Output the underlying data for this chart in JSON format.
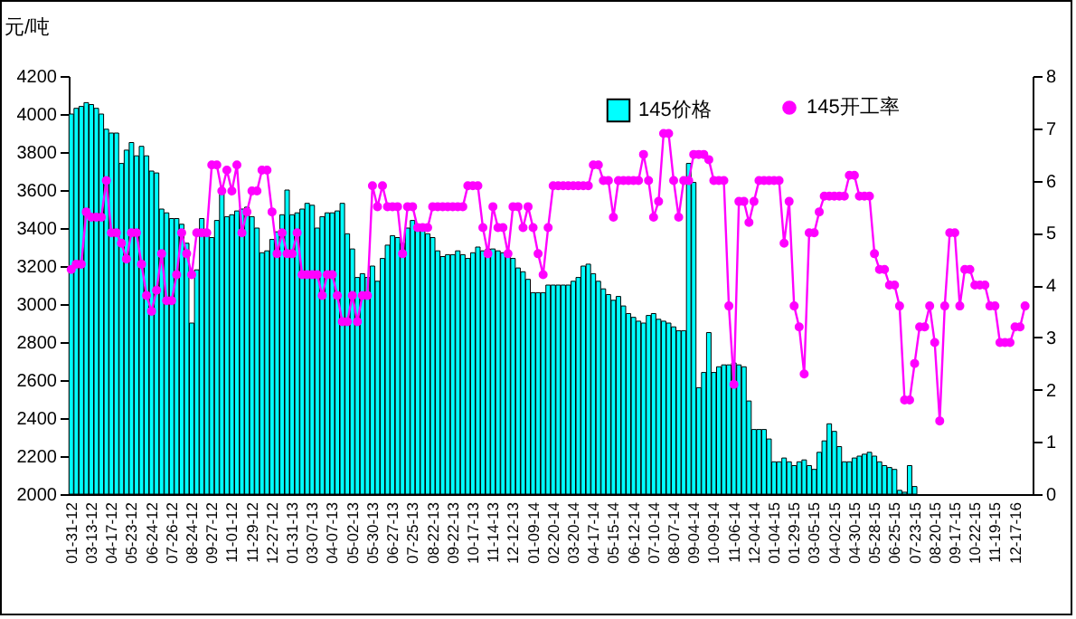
{
  "chart_data": {
    "type": "bar",
    "ylabel": "元/吨",
    "legend": "top right",
    "grid": false,
    "marker": "circle",
    "line_style": "solid",
    "categories": [
      "01-31-12",
      null,
      null,
      null,
      "03-13-12",
      null,
      null,
      null,
      "04-17-12",
      null,
      null,
      null,
      "05-23-12",
      null,
      null,
      null,
      "06-24-12",
      null,
      null,
      null,
      "07-26-12",
      null,
      null,
      null,
      "08-24-12",
      null,
      null,
      null,
      "09-27-12",
      null,
      null,
      null,
      "11-01-12",
      null,
      null,
      null,
      "11-29-12",
      null,
      null,
      null,
      "12-27-12",
      null,
      null,
      null,
      "01-31-13",
      null,
      null,
      null,
      "03-07-13",
      null,
      null,
      null,
      "04-07-13",
      null,
      null,
      null,
      "05-02-13",
      null,
      null,
      null,
      "05-30-13",
      null,
      null,
      null,
      "06-27-13",
      null,
      null,
      null,
      "07-25-13",
      null,
      null,
      null,
      "08-22-13",
      null,
      null,
      null,
      "09-22-13",
      null,
      null,
      null,
      "10-17-13",
      null,
      null,
      null,
      "11-14-13",
      null,
      null,
      null,
      "12-12-13",
      null,
      null,
      null,
      "01-09-14",
      null,
      null,
      null,
      "02-20-14",
      null,
      null,
      null,
      "03-20-14",
      null,
      null,
      null,
      "04-17-14",
      null,
      null,
      null,
      "05-15-14",
      null,
      null,
      null,
      "06-12-14",
      null,
      null,
      null,
      "07-10-14",
      null,
      null,
      null,
      "08-07-14",
      null,
      null,
      null,
      "09-04-14",
      null,
      null,
      null,
      "10-09-14",
      null,
      null,
      null,
      "11-06-14",
      null,
      null,
      null,
      "12-04-14",
      null,
      null,
      null,
      "01-04-15",
      null,
      null,
      null,
      "01-29-15",
      null,
      null,
      null,
      "03-05-15",
      null,
      null,
      null,
      "04-02-15",
      null,
      null,
      null,
      "04-30-15",
      null,
      null,
      null,
      "05-28-15",
      null,
      null,
      null,
      "06-25-15",
      null,
      null,
      null,
      "07-23-15",
      null,
      null,
      null,
      "08-20-15",
      null,
      null,
      null,
      "09-17-15",
      null,
      null,
      null,
      "10-22-15",
      null,
      null,
      null,
      "11-19-15",
      null,
      null,
      null,
      "12-17-16",
      null,
      null,
      null
    ],
    "series": [
      {
        "name": "145价格",
        "color": "#00ffff",
        "values": [
          4000,
          4030,
          4040,
          4060,
          4050,
          4030,
          4000,
          3920,
          3900,
          3900,
          3740,
          3810,
          3850,
          3780,
          3830,
          3780,
          3700,
          3690,
          3500,
          3480,
          3450,
          3450,
          3420,
          3320,
          2900,
          3180,
          3450,
          3380,
          3350,
          3440,
          3580,
          3460,
          3470,
          3490,
          3500,
          3510,
          3460,
          3400,
          3270,
          3280,
          3340,
          3380,
          3470,
          3600,
          3470,
          3480,
          3500,
          3530,
          3520,
          3400,
          3460,
          3480,
          3480,
          3490,
          3530,
          3370,
          3290,
          3140,
          3160,
          3140,
          3200,
          3120,
          3240,
          3310,
          3360,
          3350,
          3320,
          3400,
          3440,
          3420,
          3390,
          3370,
          3350,
          3280,
          3250,
          3260,
          3260,
          3280,
          3260,
          3240,
          3270,
          3300,
          3280,
          3290,
          3290,
          3280,
          3270,
          3260,
          3240,
          3190,
          3170,
          3130,
          3060,
          3060,
          3060,
          3100,
          3100,
          3100,
          3100,
          3100,
          3120,
          3140,
          3200,
          3210,
          3160,
          3120,
          3080,
          3050,
          3020,
          3040,
          2990,
          2950,
          2930,
          2910,
          2900,
          2940,
          2950,
          2920,
          2910,
          2900,
          2880,
          2860,
          2860,
          3740,
          3640,
          2560,
          2640,
          2850,
          2640,
          2670,
          2680,
          2680,
          2690,
          2680,
          2670,
          2490,
          2340,
          2340,
          2340,
          2290,
          2170,
          2170,
          2190,
          2170,
          2150,
          2170,
          2180,
          2150,
          2130,
          2220,
          2280,
          2370,
          2330,
          2250,
          2170,
          2170,
          2190,
          2200,
          2210,
          2220,
          2200,
          2170,
          2150,
          2140,
          2130,
          2020,
          2010,
          2150,
          2040,
          null,
          null,
          null,
          null,
          null,
          null,
          null,
          null,
          null,
          null,
          null,
          null,
          null,
          null,
          null,
          null,
          null,
          null,
          null,
          null,
          null,
          null,
          null
        ]
      },
      {
        "name": "145开工率",
        "type": "line",
        "axis": "y2",
        "color": "#ff00ff",
        "values": [
          4.3,
          4.4,
          4.4,
          5.4,
          5.3,
          5.3,
          5.3,
          6.0,
          5.0,
          5.0,
          4.8,
          4.5,
          5.0,
          5.0,
          4.4,
          3.8,
          3.5,
          3.9,
          4.6,
          3.7,
          3.7,
          4.2,
          5.0,
          4.6,
          4.2,
          5.0,
          5.0,
          5.0,
          6.3,
          6.3,
          5.8,
          6.2,
          5.8,
          6.3,
          5.0,
          5.4,
          5.8,
          5.8,
          6.2,
          6.2,
          5.4,
          4.6,
          5.0,
          4.6,
          4.6,
          5.0,
          4.2,
          4.2,
          4.2,
          4.2,
          3.8,
          4.2,
          4.2,
          3.8,
          3.3,
          3.3,
          3.8,
          3.3,
          3.8,
          3.8,
          5.9,
          5.5,
          5.9,
          5.5,
          5.5,
          5.5,
          4.6,
          5.5,
          5.5,
          5.1,
          5.1,
          5.1,
          5.5,
          5.5,
          5.5,
          5.5,
          5.5,
          5.5,
          5.5,
          5.9,
          5.9,
          5.9,
          5.1,
          4.6,
          5.5,
          5.1,
          5.1,
          4.6,
          5.5,
          5.5,
          5.1,
          5.5,
          5.1,
          4.6,
          4.2,
          5.1,
          5.9,
          5.9,
          5.9,
          5.9,
          5.9,
          5.9,
          5.9,
          5.9,
          6.3,
          6.3,
          6.0,
          6.0,
          5.3,
          6.0,
          6.0,
          6.0,
          6.0,
          6.0,
          6.5,
          6.0,
          5.3,
          5.6,
          6.9,
          6.9,
          6.0,
          5.3,
          6.0,
          6.0,
          6.5,
          6.5,
          6.5,
          6.4,
          6.0,
          6.0,
          6.0,
          3.6,
          2.1,
          5.6,
          5.6,
          5.2,
          5.6,
          6.0,
          6.0,
          6.0,
          6.0,
          6.0,
          4.8,
          5.6,
          3.6,
          3.2,
          2.3,
          5.0,
          5.0,
          5.4,
          5.7,
          5.7,
          5.7,
          5.7,
          5.7,
          6.1,
          6.1,
          5.7,
          5.7,
          5.7,
          4.6,
          4.3,
          4.3,
          4.0,
          4.0,
          3.6,
          1.8,
          1.8,
          2.5,
          3.2,
          3.2,
          3.6,
          2.9,
          1.4,
          3.6,
          5.0,
          5.0,
          3.6,
          4.3,
          4.3,
          4.0,
          4.0,
          4.0,
          3.6,
          3.6,
          2.9,
          2.9,
          2.9,
          3.2,
          3.2,
          3.6,
          null
        ]
      }
    ],
    "ylim": [
      2000,
      4200
    ],
    "yticks": [
      2000,
      2200,
      2400,
      2600,
      2800,
      3000,
      3200,
      3400,
      3600,
      3800,
      4000,
      4200
    ],
    "y2lim": [
      0,
      8
    ],
    "y2ticks": [
      0,
      1,
      2,
      3,
      4,
      5,
      6,
      7,
      8
    ]
  }
}
